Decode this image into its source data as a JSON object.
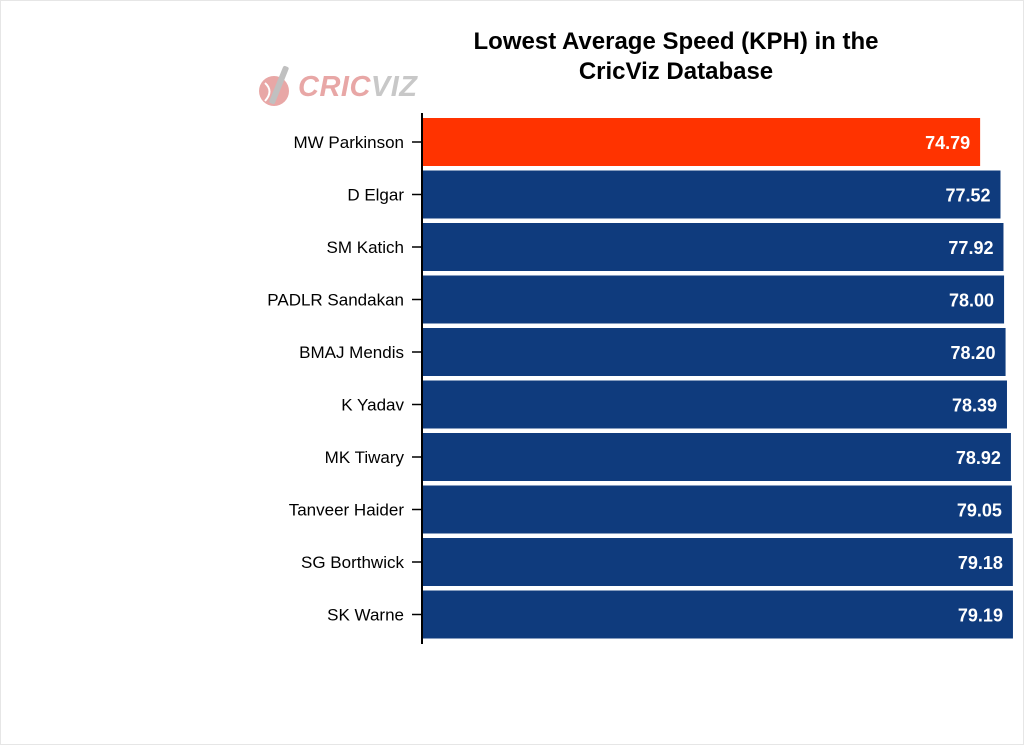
{
  "logo": {
    "text_part1": "CRIC",
    "text_part2": "VIZ"
  },
  "chart_data": {
    "type": "bar",
    "orientation": "horizontal",
    "title": "Lowest Average Speed (KPH) in the\nCricViz Database",
    "xlabel": "",
    "ylabel": "",
    "xlim": [
      0,
      80
    ],
    "grid": false,
    "categories": [
      "MW Parkinson",
      "D Elgar",
      "SM Katich",
      "PADLR Sandakan",
      "BMAJ Mendis",
      "K Yadav",
      "MK Tiwary",
      "Tanveer Haider",
      "SG Borthwick",
      "SK Warne"
    ],
    "values": [
      74.79,
      77.52,
      77.92,
      78.0,
      78.2,
      78.39,
      78.92,
      79.05,
      79.18,
      79.19
    ],
    "value_labels": [
      "74.79",
      "77.52",
      "77.92",
      "78.00",
      "78.20",
      "78.39",
      "78.92",
      "79.05",
      "79.18",
      "79.19"
    ],
    "highlight_index": 0,
    "colors": {
      "highlight": "#ff3300",
      "bar": "#0f3b7d",
      "axis": "#000000",
      "label_text": "#ffffff"
    }
  }
}
